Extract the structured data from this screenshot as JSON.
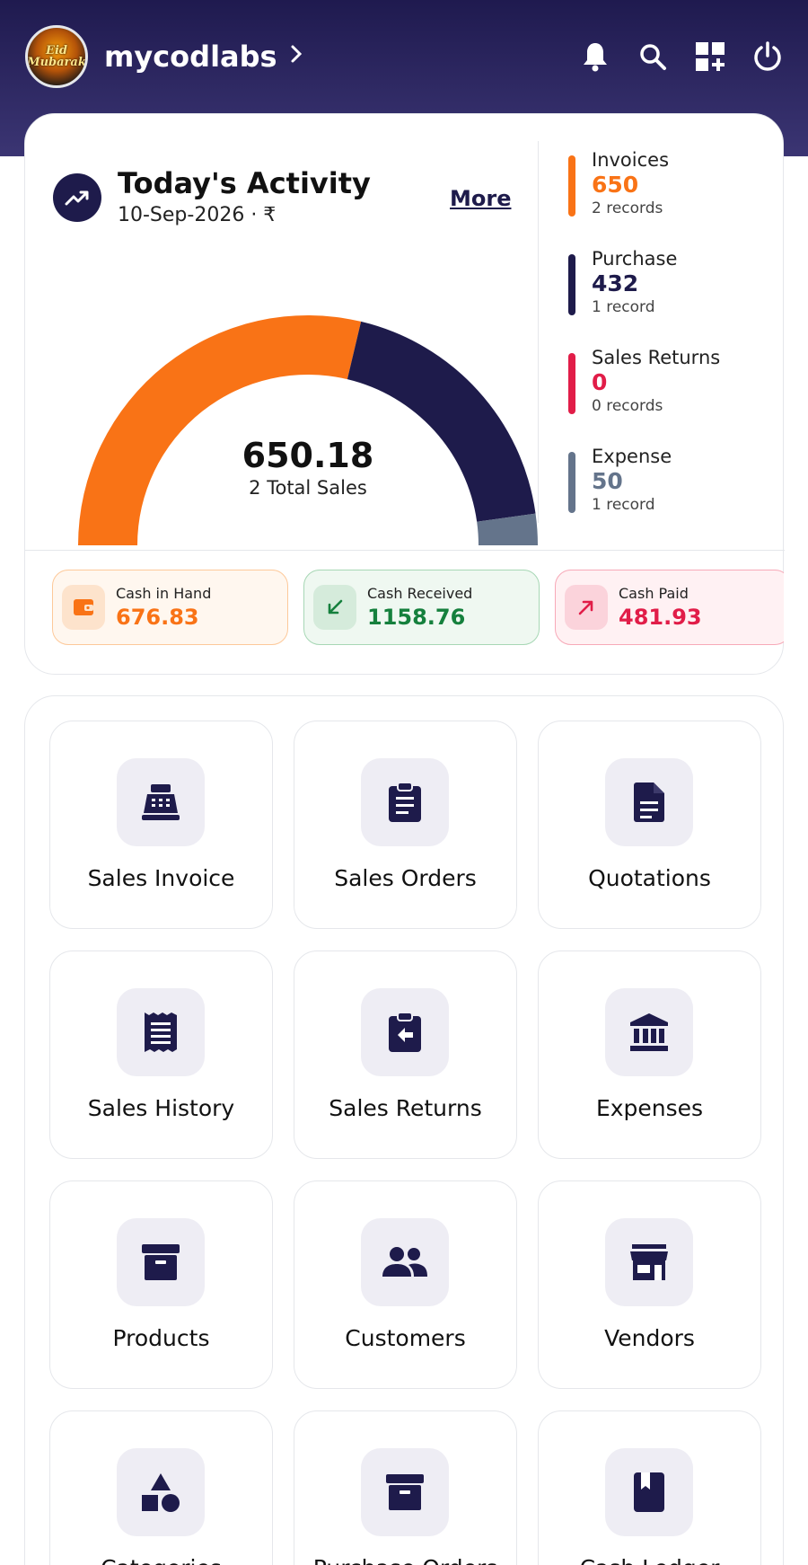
{
  "header": {
    "app_name": "mycodlabs",
    "logo_text": "Eid Mubarak"
  },
  "activity": {
    "title": "Today's Activity",
    "date": "10-Sep-2026 · ₹",
    "more_label": "More",
    "total_value": "650.18",
    "total_label": "2 Total Sales",
    "gauge": {
      "segments": [
        {
          "name": "Invoices",
          "value": 650,
          "color": "#f97316"
        },
        {
          "name": "Purchase",
          "value": 432,
          "color": "#1e1b4b"
        },
        {
          "name": "Sales Returns",
          "value": 0,
          "color": "#e11d48"
        },
        {
          "name": "Expense",
          "value": 50,
          "color": "#64748b"
        }
      ]
    },
    "stats": [
      {
        "name": "Invoices",
        "value": "650",
        "records": "2 records",
        "color": "#f97316"
      },
      {
        "name": "Purchase",
        "value": "432",
        "records": "1 record",
        "color": "#1e1b4b"
      },
      {
        "name": "Sales Returns",
        "value": "0",
        "records": "0 records",
        "color": "#e11d48"
      },
      {
        "name": "Expense",
        "value": "50",
        "records": "1 record",
        "color": "#64748b"
      }
    ]
  },
  "cash": [
    {
      "label": "Cash in Hand",
      "value": "676.83",
      "color": "#f97316",
      "bg": "#fff7ef",
      "border": "#fdc99a",
      "icon_bg": "#fde3cc",
      "icon": "wallet-icon"
    },
    {
      "label": "Cash Received",
      "value": "1158.76",
      "color": "#15803d",
      "bg": "#eff8f1",
      "border": "#a7d7b5",
      "icon_bg": "#d5ebdb",
      "icon": "arrow-down-left-icon"
    },
    {
      "label": "Cash Paid",
      "value": "481.93",
      "color": "#e11d48",
      "bg": "#fff1f3",
      "border": "#f7a9b8",
      "icon_bg": "#fbd3db",
      "icon": "arrow-up-right-icon"
    }
  ],
  "tiles": [
    {
      "label": "Sales Invoice",
      "icon": "cash-register-icon"
    },
    {
      "label": "Sales Orders",
      "icon": "clipboard-icon"
    },
    {
      "label": "Quotations",
      "icon": "document-icon"
    },
    {
      "label": "Sales History",
      "icon": "receipt-icon"
    },
    {
      "label": "Sales Returns",
      "icon": "return-clipboard-icon"
    },
    {
      "label": "Expenses",
      "icon": "bank-icon"
    },
    {
      "label": "Products",
      "icon": "archive-box-icon"
    },
    {
      "label": "Customers",
      "icon": "people-icon"
    },
    {
      "label": "Vendors",
      "icon": "storefront-icon"
    },
    {
      "label": "Categories",
      "icon": "shapes-icon"
    },
    {
      "label": "Purchase Orders",
      "icon": "archive-box-icon"
    },
    {
      "label": "Cash Ledger",
      "icon": "book-icon"
    }
  ]
}
